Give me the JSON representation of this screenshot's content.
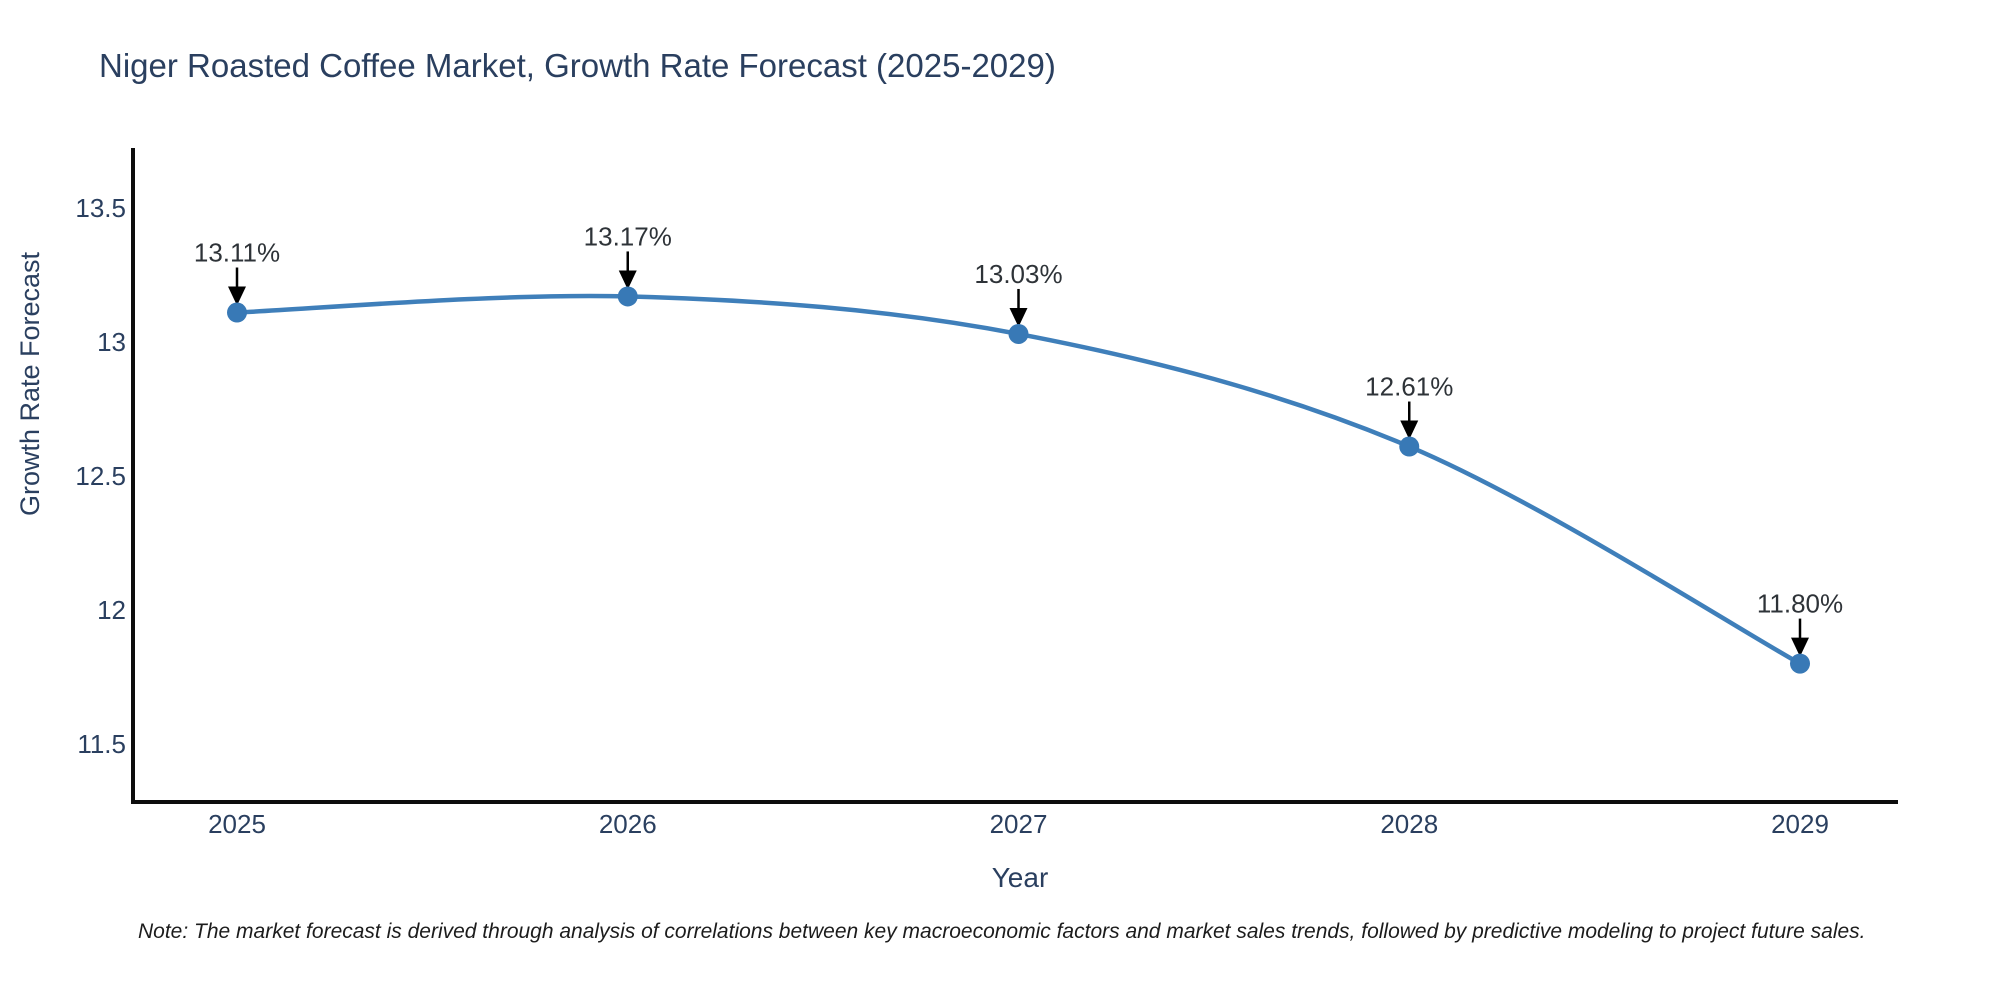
{
  "title": "Niger Roasted Coffee Market, Growth Rate Forecast (2025-2029)",
  "footnote": "Note: The market forecast is derived through analysis of correlations between key macroeconomic factors and market sales trends, followed by predictive modeling to project future sales.",
  "chart_data": {
    "type": "line",
    "line_shape": "spline",
    "title": "Niger Roasted Coffee Market, Growth Rate Forecast (2025-2029)",
    "xlabel": "Year",
    "ylabel": "Growth Rate Forecast",
    "categories": [
      "2025",
      "2026",
      "2027",
      "2028",
      "2029"
    ],
    "series": [
      {
        "name": "Growth Rate Forecast",
        "values": [
          13.11,
          13.17,
          13.03,
          12.61,
          11.8
        ]
      }
    ],
    "point_labels": [
      "13.11%",
      "13.17%",
      "13.03%",
      "12.61%",
      "11.80%"
    ],
    "yticks": {
      "values": [
        13.5,
        13.0,
        12.5,
        12.0,
        11.5
      ],
      "labels": [
        "13.5",
        "13",
        "12.5",
        "12",
        "11.5"
      ]
    },
    "ylim": [
      11.28,
      13.72
    ],
    "grid": false,
    "legend": "none",
    "annotations_have_arrows": true
  },
  "colors": {
    "background": "#ffffff",
    "title_text": "#2a3f5f",
    "axis_text": "#2a3f5f",
    "annotation_text": "#2e3338",
    "note_text": "#1c1c1c",
    "line": "#3f7fba",
    "marker": "#3879b6",
    "axis_line": "#0d0d0d",
    "arrow": "#000000"
  }
}
